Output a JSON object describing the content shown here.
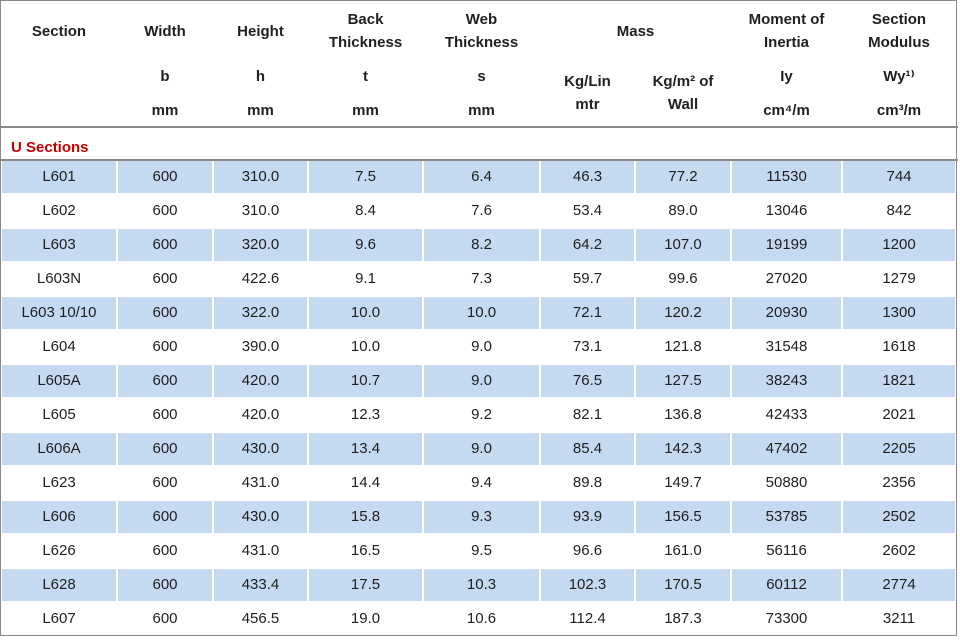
{
  "header": {
    "columns": [
      {
        "title": [
          "Section"
        ]
      },
      {
        "title": [
          "Width"
        ],
        "symbol": "b",
        "unit": "mm"
      },
      {
        "title": [
          "Height"
        ],
        "symbol": "h",
        "unit": "mm"
      },
      {
        "title": [
          "Back",
          "Thickness"
        ],
        "symbol": "t",
        "unit": "mm"
      },
      {
        "title": [
          "Web",
          "Thickness"
        ],
        "symbol": "s",
        "unit": "mm"
      },
      {
        "title": [
          "Mass"
        ],
        "sub": [
          [
            "Kg/Lin",
            "mtr"
          ],
          [
            "Kg/m² of",
            "Wall"
          ]
        ]
      },
      {
        "title": [
          "Moment of",
          "Inertia"
        ],
        "symbol": "Iy",
        "unit": "cm⁴/m"
      },
      {
        "title": [
          "Section",
          "Modulus"
        ],
        "symbol": "Wy¹⁾",
        "unit": "cm³/m"
      }
    ]
  },
  "section_label": "U Sections",
  "table": {
    "rows": [
      [
        "L601",
        "600",
        "310.0",
        "7.5",
        "6.4",
        "46.3",
        "77.2",
        "11530",
        "744"
      ],
      [
        "L602",
        "600",
        "310.0",
        "8.4",
        "7.6",
        "53.4",
        "89.0",
        "13046",
        "842"
      ],
      [
        "L603",
        "600",
        "320.0",
        "9.6",
        "8.2",
        "64.2",
        "107.0",
        "19199",
        "1200"
      ],
      [
        "L603N",
        "600",
        "422.6",
        "9.1",
        "7.3",
        "59.7",
        "99.6",
        "27020",
        "1279"
      ],
      [
        "L603 10/10",
        "600",
        "322.0",
        "10.0",
        "10.0",
        "72.1",
        "120.2",
        "20930",
        "1300"
      ],
      [
        "L604",
        "600",
        "390.0",
        "10.0",
        "9.0",
        "73.1",
        "121.8",
        "31548",
        "1618"
      ],
      [
        "L605A",
        "600",
        "420.0",
        "10.7",
        "9.0",
        "76.5",
        "127.5",
        "38243",
        "1821"
      ],
      [
        "L605",
        "600",
        "420.0",
        "12.3",
        "9.2",
        "82.1",
        "136.8",
        "42433",
        "2021"
      ],
      [
        "L606A",
        "600",
        "430.0",
        "13.4",
        "9.0",
        "85.4",
        "142.3",
        "47402",
        "2205"
      ],
      [
        "L623",
        "600",
        "431.0",
        "14.4",
        "9.4",
        "89.8",
        "149.7",
        "50880",
        "2356"
      ],
      [
        "L606",
        "600",
        "430.0",
        "15.8",
        "9.3",
        "93.9",
        "156.5",
        "53785",
        "2502"
      ],
      [
        "L626",
        "600",
        "431.0",
        "16.5",
        "9.5",
        "96.6",
        "161.0",
        "56116",
        "2602"
      ],
      [
        "L628",
        "600",
        "433.4",
        "17.5",
        "10.3",
        "102.3",
        "170.5",
        "60112",
        "2774"
      ],
      [
        "L607",
        "600",
        "456.5",
        "19.0",
        "10.6",
        "112.4",
        "187.3",
        "73300",
        "3211"
      ]
    ]
  }
}
